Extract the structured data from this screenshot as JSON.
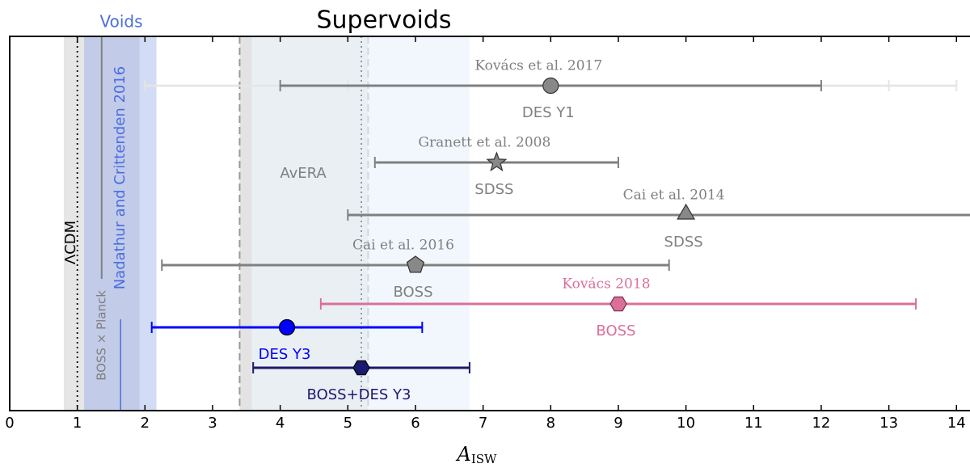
{
  "chart_data": {
    "type": "errorbar",
    "title": "Supervoids",
    "voids_title": "Voids",
    "xlabel": "A",
    "xlabel_subscript": "ISW",
    "xlim": [
      0,
      14.2
    ],
    "xticks": [
      0,
      1,
      2,
      3,
      4,
      5,
      6,
      7,
      8,
      9,
      10,
      11,
      12,
      13,
      14
    ],
    "bands": [
      {
        "from": 0.8,
        "to": 1.1,
        "color": "#e6e6e6"
      },
      {
        "from": 1.1,
        "to": 2.17,
        "color": "#d3dcf5"
      },
      {
        "from": 1.1,
        "to": 1.92,
        "color": "#c2cbe8"
      },
      {
        "from": 3.4,
        "to": 3.58,
        "color": "#e3e3e3"
      },
      {
        "from": 3.58,
        "to": 5.3,
        "color": "#eaeff4"
      },
      {
        "from": 5.3,
        "to": 6.8,
        "color": "#f2f7fe"
      }
    ],
    "lines": [
      {
        "value": 1,
        "style": "dotted",
        "color": "#000000"
      },
      {
        "value": 3.4,
        "style": "dashed",
        "color": "#999999"
      },
      {
        "value": 5.3,
        "style": "dashed",
        "color": "#cfd6dc"
      },
      {
        "value": 5.2,
        "style": "dotted",
        "color": "#8090a0"
      }
    ],
    "lcdm_label": "ΛCDM",
    "avera_label": "AvERA",
    "planck_label": "BOSS × Planck",
    "planck_value": 1.36,
    "nadathur_label": "Nadathur and Crittenden 2016",
    "nadathur_value": 1.64,
    "points": [
      {
        "reference": "Kovács et al. 2017",
        "name": "DES Y1",
        "value": 8,
        "error": 4,
        "outer_error": 6,
        "marker": "circle",
        "color": "#808080"
      },
      {
        "reference": "Granett et al. 2008",
        "name": "SDSS",
        "value": 7.2,
        "error": 1.8,
        "marker": "star",
        "color": "#808080"
      },
      {
        "reference": "Cai et al. 2014",
        "name": "SDSS",
        "value": 10,
        "error": 5,
        "marker": "triangle",
        "color": "#808080"
      },
      {
        "reference": "Cai et al. 2016",
        "name": "BOSS",
        "value": 6,
        "error": 3.75,
        "marker": "pentagon",
        "color": "#808080"
      },
      {
        "reference": "Kovács 2018",
        "name": "BOSS",
        "value": 9,
        "error": 4.4,
        "marker": "hexagon",
        "color": "#d9709a"
      },
      {
        "name": "DES Y3",
        "value": 4.1,
        "error": 2,
        "marker": "circle",
        "color": "#0000ff"
      },
      {
        "name": "BOSS+DES Y3",
        "value": 5.2,
        "error": 1.6,
        "marker": "hexagon",
        "color": "#1a1a6e"
      }
    ]
  }
}
